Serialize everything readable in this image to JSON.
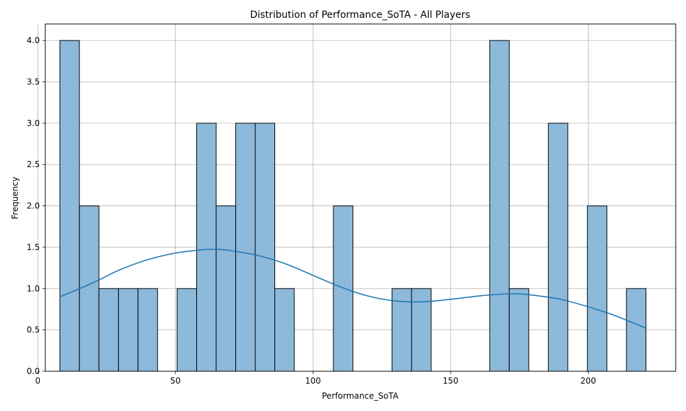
{
  "chart_data": {
    "type": "bar",
    "subtype": "histogram-with-kde",
    "title": "Distribution of Performance_SoTA - All Players",
    "xlabel": "Performance_SoTA",
    "ylabel": "Frequency",
    "xlim": [
      2.7,
      231.8
    ],
    "ylim": [
      0,
      4.2
    ],
    "grid": true,
    "x_ticks": [
      0,
      50,
      100,
      150,
      200
    ],
    "y_ticks": [
      0.0,
      0.5,
      1.0,
      1.5,
      2.0,
      2.5,
      3.0,
      3.5,
      4.0
    ],
    "x_tick_labels": [
      "0",
      "50",
      "100",
      "150",
      "200"
    ],
    "y_tick_labels": [
      "0.0",
      "0.5",
      "1.0",
      "1.5",
      "2.0",
      "2.5",
      "3.0",
      "3.5",
      "4.0"
    ],
    "bar_color": "#8db9da",
    "bar_edge_color": "#000000",
    "kde_color": "#1f77b4",
    "bin_edges": [
      8.0,
      15.1,
      22.2,
      29.3,
      36.4,
      43.5,
      50.6,
      57.7,
      64.8,
      71.9,
      79.0,
      86.1,
      93.2,
      100.3,
      107.4,
      114.5,
      121.6,
      128.7,
      135.8,
      142.9,
      150.0,
      157.1,
      164.2,
      171.3,
      178.4,
      185.5,
      192.6,
      199.7,
      206.8,
      213.9,
      221.0
    ],
    "values": [
      4,
      2,
      1,
      1,
      1,
      0,
      1,
      3,
      2,
      3,
      3,
      1,
      0,
      0,
      2,
      0,
      0,
      1,
      1,
      0,
      0,
      0,
      4,
      1,
      0,
      3,
      0,
      2,
      0,
      1
    ],
    "kde": {
      "x": [
        8,
        20,
        30,
        40,
        50,
        60,
        65,
        70,
        80,
        90,
        100,
        110,
        120,
        130,
        140,
        150,
        160,
        170,
        175,
        180,
        190,
        200,
        210,
        221
      ],
      "y": [
        0.9,
        1.07,
        1.23,
        1.35,
        1.43,
        1.47,
        1.475,
        1.46,
        1.4,
        1.3,
        1.16,
        1.02,
        0.91,
        0.85,
        0.84,
        0.87,
        0.91,
        0.935,
        0.935,
        0.92,
        0.87,
        0.78,
        0.67,
        0.52
      ]
    }
  }
}
